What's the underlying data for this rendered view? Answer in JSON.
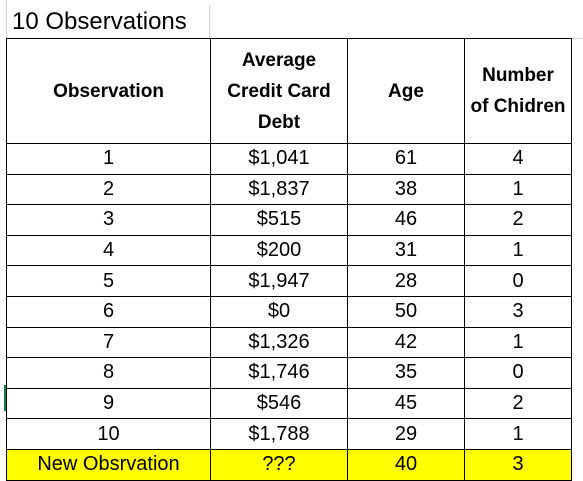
{
  "sheet": {
    "title": "10 Observations",
    "headers": {
      "observation": "Observation",
      "debt": [
        "Average",
        "Credit Card",
        "Debt"
      ],
      "age": "Age",
      "children": [
        "Number",
        "of Chidren"
      ]
    },
    "rows": [
      {
        "observation": "1",
        "debt": "$1,041",
        "age": "61",
        "children": "4"
      },
      {
        "observation": "2",
        "debt": "$1,837",
        "age": "38",
        "children": "1"
      },
      {
        "observation": "3",
        "debt": "$515",
        "age": "46",
        "children": "2"
      },
      {
        "observation": "4",
        "debt": "$200",
        "age": "31",
        "children": "1"
      },
      {
        "observation": "5",
        "debt": "$1,947",
        "age": "28",
        "children": "0"
      },
      {
        "observation": "6",
        "debt": "$0",
        "age": "50",
        "children": "3"
      },
      {
        "observation": "7",
        "debt": "$1,326",
        "age": "42",
        "children": "1"
      },
      {
        "observation": "8",
        "debt": "$1,746",
        "age": "35",
        "children": "0"
      },
      {
        "observation": "9",
        "debt": "$546",
        "age": "45",
        "children": "2"
      },
      {
        "observation": "10",
        "debt": "$1,788",
        "age": "29",
        "children": "1"
      }
    ],
    "new_row": {
      "observation": "New Obsrvation",
      "debt": "???",
      "age": "40",
      "children": "3"
    },
    "colors": {
      "highlight": "#ffff00",
      "border": "#000000",
      "gridline": "#d4d4d4",
      "selection_marker": "#107c41"
    }
  }
}
